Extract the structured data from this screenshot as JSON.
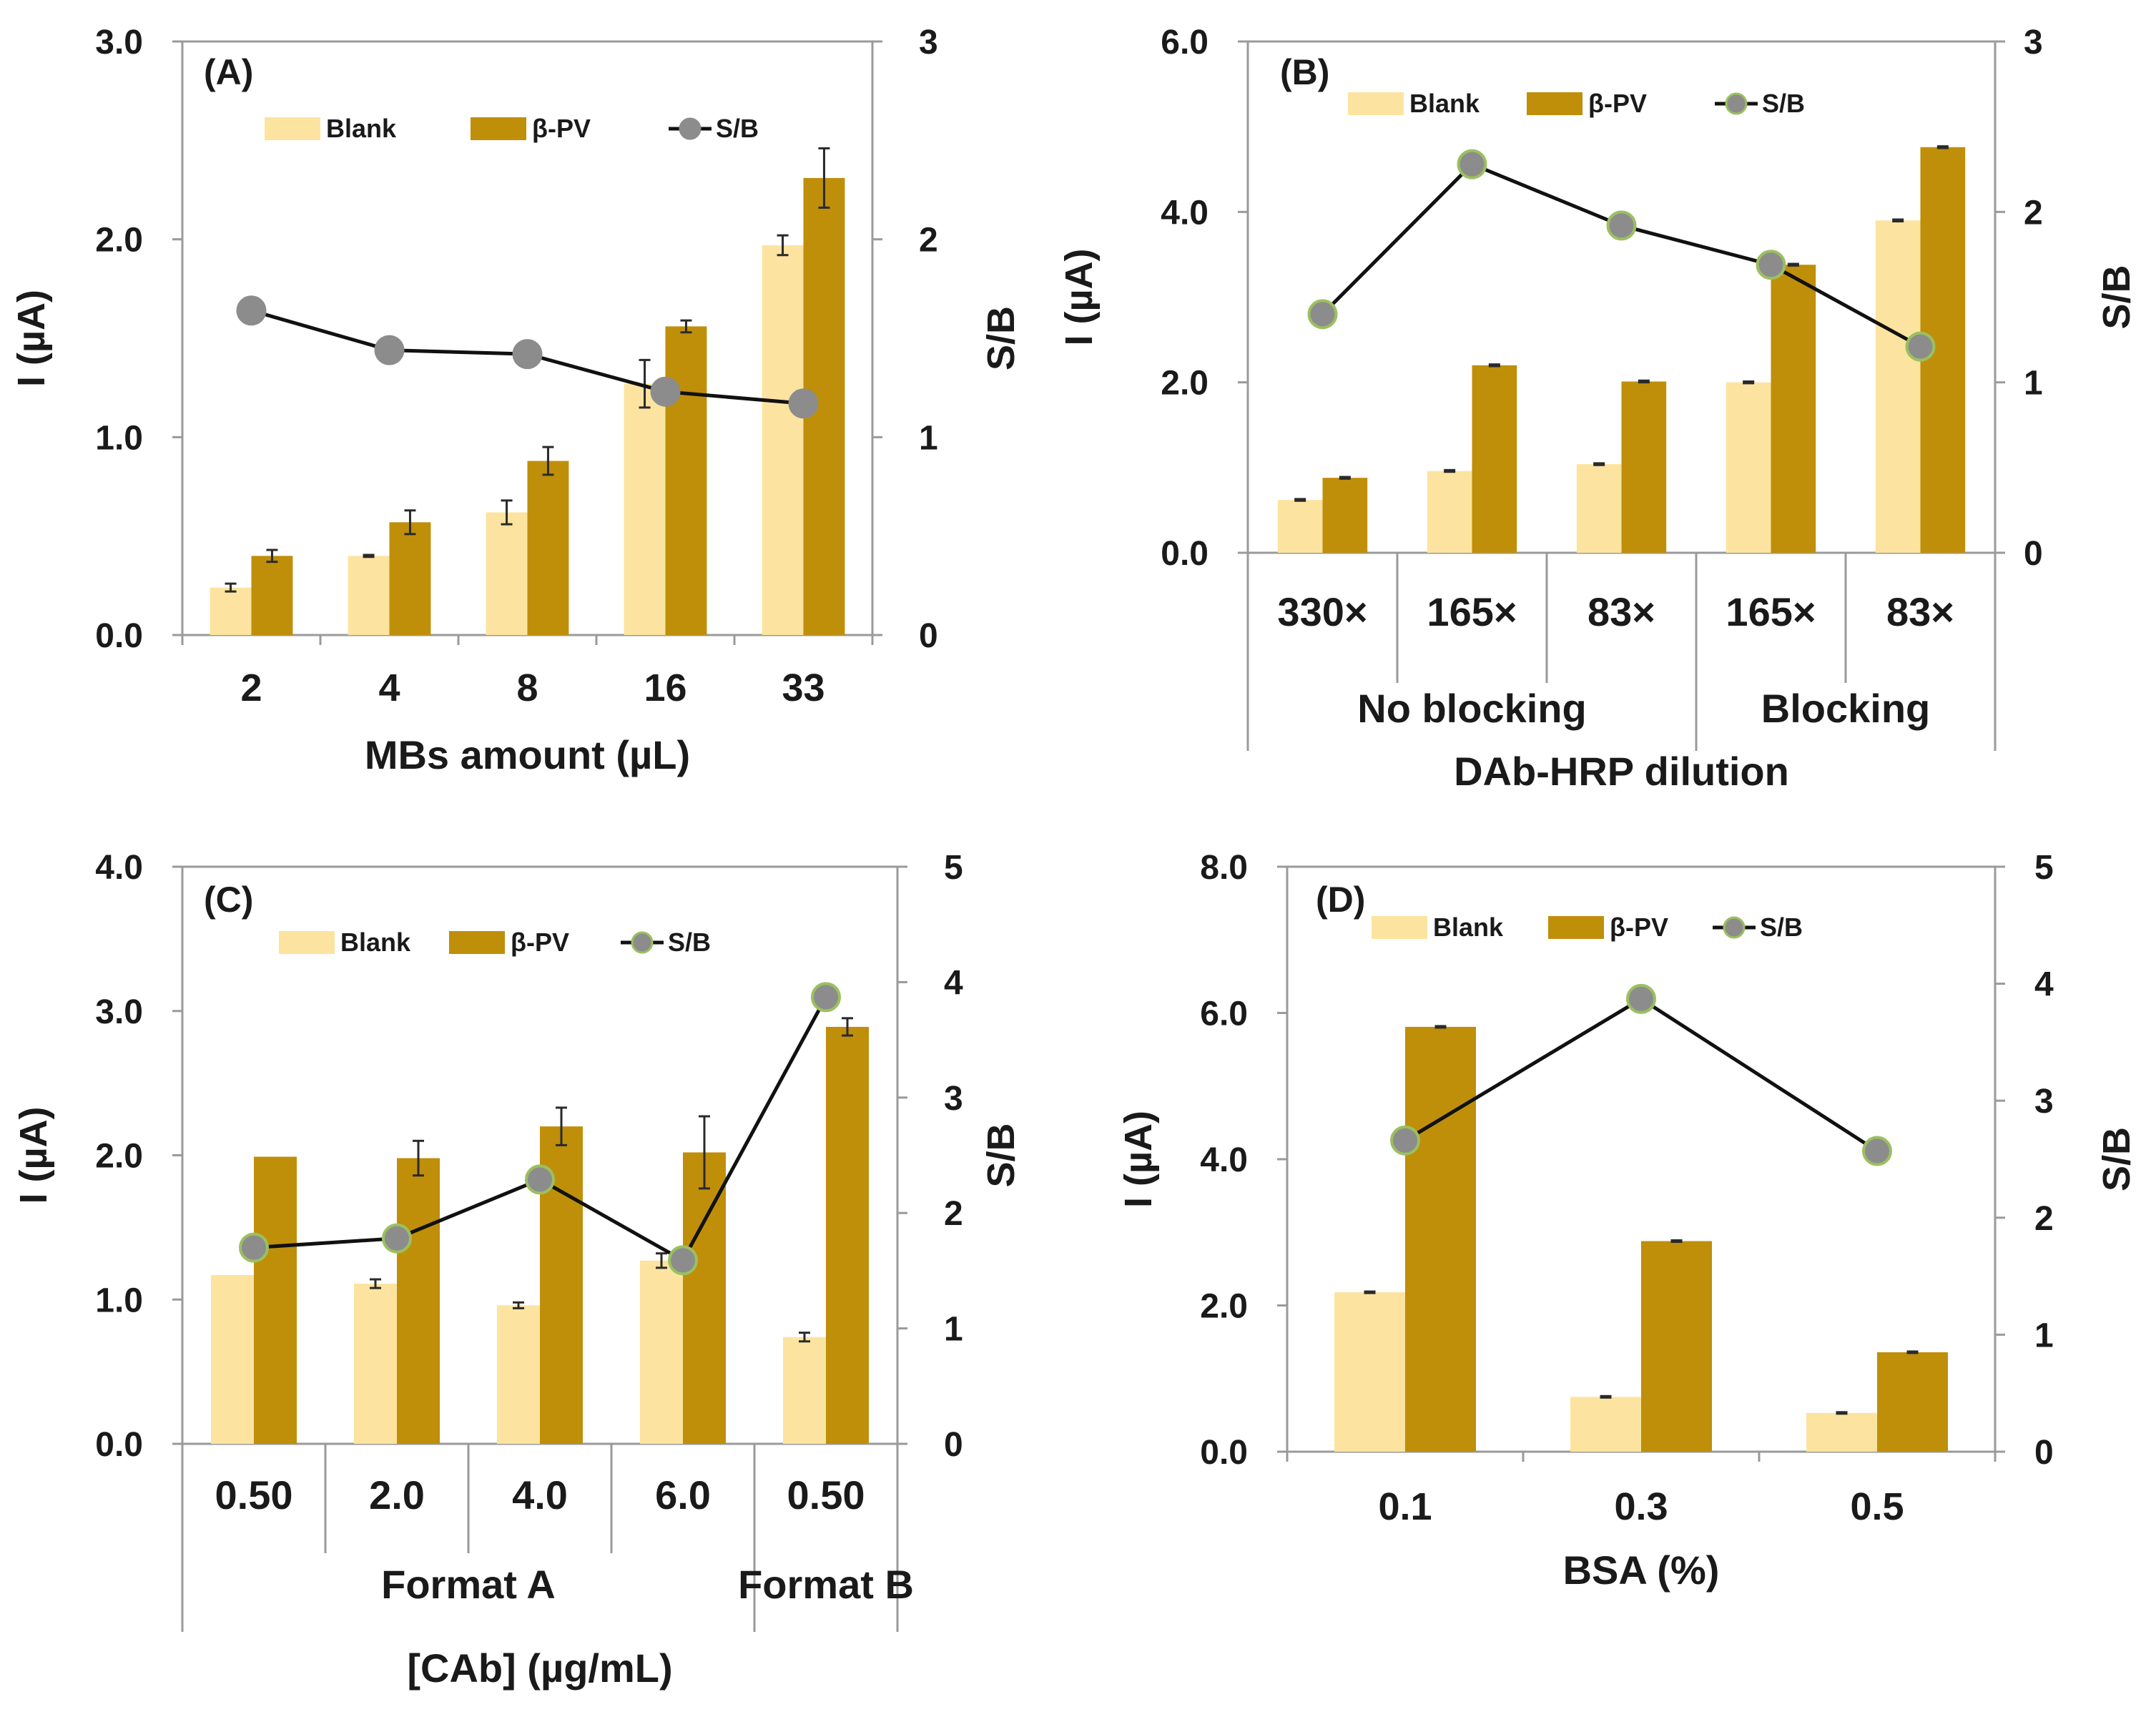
{
  "colors": {
    "blank": "#FCE4A0",
    "bpv": "#BF8F0A",
    "sb_line": "#111111",
    "marker": "#8C8C8C",
    "marker_edge_green": "#9BC060"
  },
  "chart_data": [
    {
      "type": "bar",
      "panel_label": "(A)",
      "categories": [
        "2",
        "4",
        "8",
        "16",
        "33"
      ],
      "group_labels": [],
      "series": [
        {
          "name": "Blank",
          "values": [
            0.24,
            0.4,
            0.62,
            1.27,
            1.97
          ],
          "errors": [
            0.02,
            0.005,
            0.06,
            0.12,
            0.05
          ]
        },
        {
          "name": "β-PV",
          "values": [
            0.4,
            0.57,
            0.88,
            1.56,
            2.31
          ],
          "errors": [
            0.03,
            0.06,
            0.07,
            0.03,
            0.15
          ]
        }
      ],
      "sb": {
        "name": "S/B",
        "values": [
          1.64,
          1.44,
          1.42,
          1.23,
          1.17
        ]
      },
      "xlabel": "MBs amount (µL)",
      "ylabel": "I (µA)",
      "y2label": "S/B",
      "ylim": [
        0,
        3.0
      ],
      "y2lim": [
        0,
        3
      ],
      "yticks": [
        "0.0",
        "1.0",
        "2.0",
        "3.0"
      ],
      "y2ticks": [
        "0",
        "1",
        "2",
        "3"
      ],
      "marker_edge": "gray"
    },
    {
      "type": "bar",
      "panel_label": "(B)",
      "categories": [
        "330×",
        "165×",
        "83×",
        "165×",
        "83×"
      ],
      "group_labels": [
        {
          "label": "No blocking",
          "start": 0,
          "end": 2
        },
        {
          "label": "Blocking",
          "start": 3,
          "end": 4
        }
      ],
      "series": [
        {
          "name": "Blank",
          "values": [
            0.62,
            0.96,
            1.04,
            2.0,
            3.9
          ],
          "errors": [
            0.01,
            0.01,
            0.01,
            0.01,
            0.01
          ]
        },
        {
          "name": "β-PV",
          "values": [
            0.88,
            2.2,
            2.01,
            3.38,
            4.76
          ],
          "errors": [
            0.01,
            0.01,
            0.01,
            0.01,
            0.01
          ]
        }
      ],
      "sb": {
        "name": "S/B",
        "values": [
          1.4,
          2.28,
          1.92,
          1.69,
          1.21
        ]
      },
      "xlabel": "DAb-HRP dilution",
      "ylabel": "I (µA)",
      "y2label": "S/B",
      "ylim": [
        0,
        6.0
      ],
      "y2lim": [
        0,
        3
      ],
      "yticks": [
        "0.0",
        "2.0",
        "4.0",
        "6.0"
      ],
      "y2ticks": [
        "0",
        "1",
        "2",
        "3"
      ],
      "marker_edge": "green"
    },
    {
      "type": "bar",
      "panel_label": "(C)",
      "categories": [
        "0.50",
        "2.0",
        "4.0",
        "6.0",
        "0.50"
      ],
      "group_labels": [
        {
          "label": "Format A",
          "start": 0,
          "end": 3
        },
        {
          "label": "Format B",
          "start": 4,
          "end": 4
        }
      ],
      "series": [
        {
          "name": "Blank",
          "values": [
            1.17,
            1.11,
            0.96,
            1.27,
            0.74
          ],
          "errors": [
            0.0,
            0.03,
            0.02,
            0.05,
            0.03
          ]
        },
        {
          "name": "β-PV",
          "values": [
            1.99,
            1.98,
            2.2,
            2.02,
            2.89
          ],
          "errors": [
            0.0,
            0.12,
            0.13,
            0.25,
            0.06
          ]
        }
      ],
      "sb": {
        "name": "S/B",
        "values": [
          1.7,
          1.78,
          2.29,
          1.59,
          3.87
        ]
      },
      "xlabel": "[CAb] (µg/mL)",
      "ylabel": "I (µA)",
      "y2label": "S/B",
      "ylim": [
        0,
        4.0
      ],
      "y2lim": [
        0,
        5
      ],
      "yticks": [
        "0.0",
        "1.0",
        "2.0",
        "3.0",
        "4.0"
      ],
      "y2ticks": [
        "0",
        "1",
        "2",
        "3",
        "4",
        "5"
      ],
      "marker_edge": "green"
    },
    {
      "type": "bar",
      "panel_label": "(D)",
      "categories": [
        "0.1",
        "0.3",
        "0.5"
      ],
      "group_labels": [],
      "series": [
        {
          "name": "Blank",
          "values": [
            2.18,
            0.75,
            0.53
          ],
          "errors": [
            0.01,
            0.01,
            0.01
          ]
        },
        {
          "name": "β-PV",
          "values": [
            5.81,
            2.88,
            1.36
          ],
          "errors": [
            0.01,
            0.01,
            0.01
          ]
        }
      ],
      "sb": {
        "name": "S/B",
        "values": [
          2.66,
          3.87,
          2.57
        ]
      },
      "xlabel": "BSA (%)",
      "ylabel": "I (µA)",
      "y2label": "S/B",
      "ylim": [
        0,
        8.0
      ],
      "y2lim": [
        0,
        5
      ],
      "yticks": [
        "0.0",
        "2.0",
        "4.0",
        "6.0",
        "8.0"
      ],
      "y2ticks": [
        "0",
        "1",
        "2",
        "3",
        "4",
        "5"
      ],
      "marker_edge": "green"
    }
  ]
}
